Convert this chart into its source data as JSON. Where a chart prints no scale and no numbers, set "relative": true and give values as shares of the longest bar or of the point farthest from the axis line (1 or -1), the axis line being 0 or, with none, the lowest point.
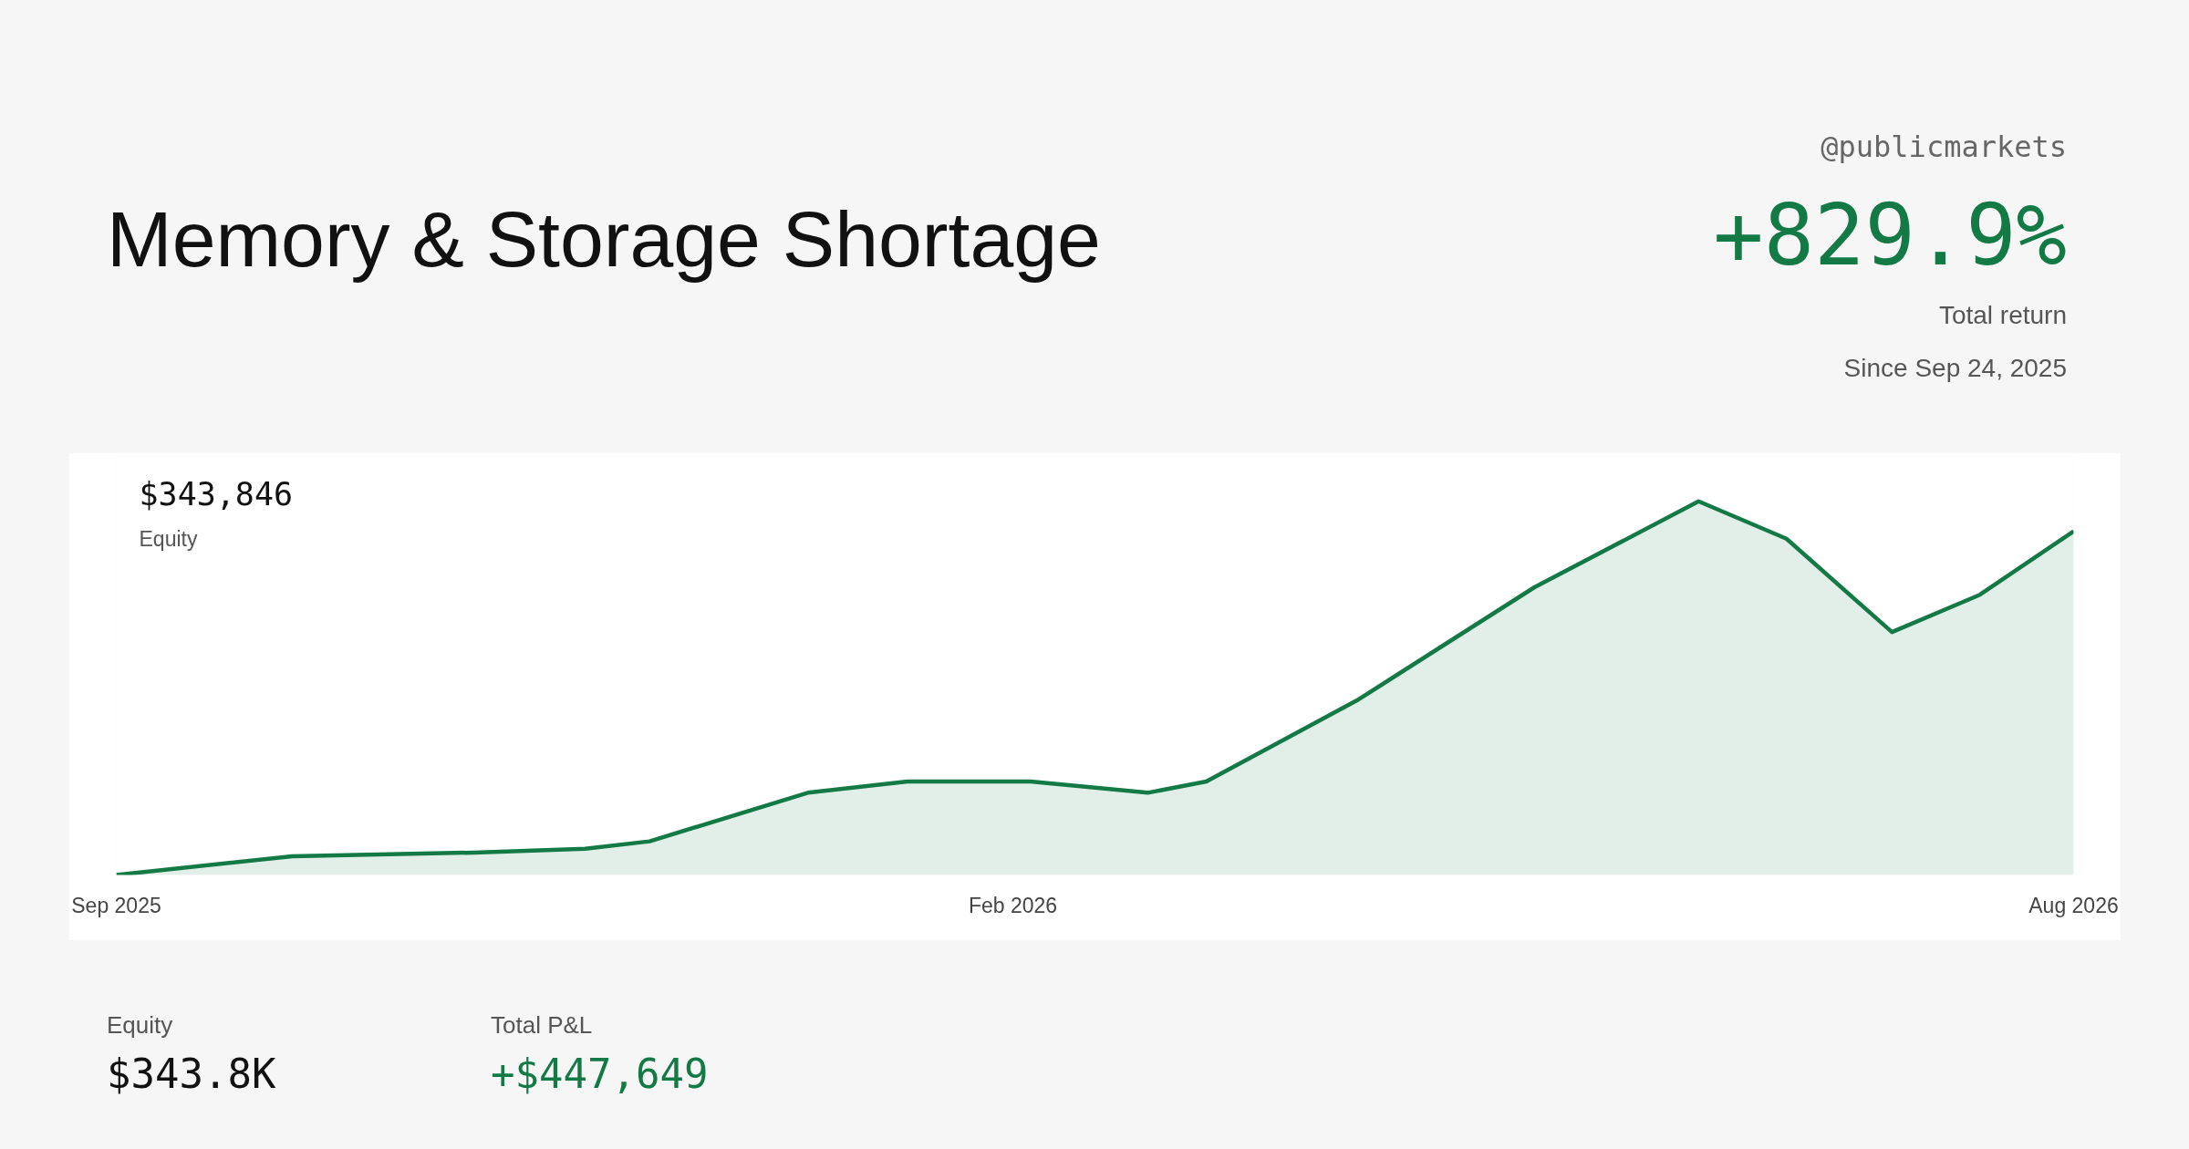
{
  "chart_data": {
    "type": "area",
    "title": "Memory & Storage Shortage",
    "relative": true,
    "color": "#137a45",
    "x": [
      "2025-09-01",
      "2025-10-01",
      "2025-11-01",
      "2025-11-20",
      "2025-12-01",
      "2025-12-28",
      "2026-01-14",
      "2026-02-04",
      "2026-02-24",
      "2026-03-06",
      "2026-04-01",
      "2026-05-01",
      "2026-05-29",
      "2026-06-13",
      "2026-07-01",
      "2026-07-16",
      "2026-08-01"
    ],
    "values": [
      0,
      0.05,
      0.06,
      0.07,
      0.09,
      0.22,
      0.25,
      0.25,
      0.22,
      0.25,
      0.47,
      0.77,
      1,
      0.9,
      0.65,
      0.75,
      0.92
    ],
    "xlim": [
      "2025-09-01",
      "2026-08-01"
    ],
    "xticks": [
      {
        "value": "2025-09-01",
        "label": "Sep 2025"
      },
      {
        "value": "2026-02-01",
        "label": "Feb 2026"
      },
      {
        "value": "2026-08-01",
        "label": "Aug 2026"
      }
    ],
    "tick_labels": "x",
    "grid": false,
    "annotations": [
      "@publicmarkets",
      "+829.9%",
      "Total return",
      "Since Sep 24, 2025",
      "$343,846",
      "Equity",
      "Equity",
      "$343.8K",
      "Total P&L",
      "+$447,649"
    ]
  }
}
